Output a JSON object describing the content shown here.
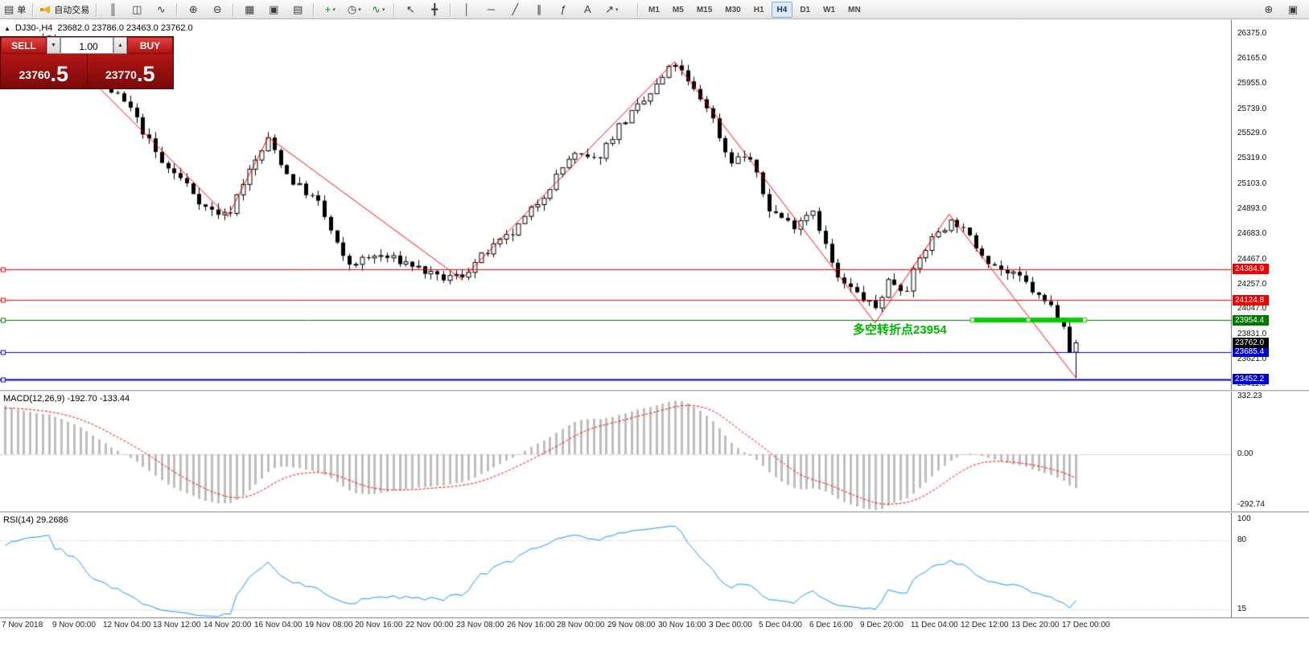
{
  "toolbar": {
    "caret_glyph": "▾",
    "groups": [
      {
        "items": [
          {
            "name": "new-order-button",
            "glyph": "▤",
            "label": "单"
          }
        ]
      },
      {
        "items": [
          {
            "name": "autotrade-button",
            "glyph": "horn",
            "label": "自动交易"
          }
        ]
      },
      {
        "items": [
          {
            "name": "bar-chart-button",
            "glyph": "║"
          },
          {
            "name": "candlestick-chart-button",
            "glyph": "◫"
          },
          {
            "name": "line-chart-button",
            "glyph": "∿"
          }
        ]
      },
      {
        "items": [
          {
            "name": "zoom-in-button",
            "glyph": "⊕"
          },
          {
            "name": "zoom-out-button",
            "glyph": "⊖"
          }
        ]
      },
      {
        "items": [
          {
            "name": "tile-windows-button",
            "glyph": "▦"
          },
          {
            "name": "cascade-windows-button",
            "glyph": "▣"
          },
          {
            "name": "arrange-windows-button",
            "glyph": "▤"
          }
        ]
      },
      {
        "items": [
          {
            "name": "new-chart-button",
            "glyph": "+",
            "caret": true,
            "accent": "#1a7f1a"
          },
          {
            "name": "profiles-button",
            "glyph": "◷",
            "caret": true
          },
          {
            "name": "indicators-button",
            "glyph": "∿",
            "caret": true,
            "accent": "#1a7f1a"
          }
        ]
      },
      {
        "items": [
          {
            "name": "cursor-button",
            "glyph": "↖"
          },
          {
            "name": "crosshair-button",
            "glyph": "╋"
          }
        ]
      },
      {
        "items": [
          {
            "name": "vertical-line-button",
            "glyph": "│"
          },
          {
            "name": "horizontal-line-button",
            "glyph": "─"
          },
          {
            "name": "trendline-button",
            "glyph": "╱"
          },
          {
            "name": "channel-button",
            "glyph": "∥"
          },
          {
            "name": "fibonacci-button",
            "glyph": "ƒ"
          },
          {
            "name": "text-button",
            "glyph": "A"
          },
          {
            "name": "arrow-tools-button",
            "glyph": "↗",
            "caret": true
          }
        ]
      }
    ],
    "timeframes": [
      "M1",
      "M5",
      "M15",
      "M30",
      "H1",
      "H4",
      "D1",
      "W1",
      "MN"
    ],
    "active_timeframe": "H4",
    "right_icons": [
      {
        "name": "zoom-window-button",
        "glyph": "⊕"
      },
      {
        "name": "document-button",
        "glyph": "▣"
      }
    ]
  },
  "chart_header": {
    "toggle_glyph": "▲",
    "symbol": "DJ30-,H4",
    "ohlc": "23682.0 23786.0 23463.0 23762.0"
  },
  "trade_panel": {
    "sell_label": "SELL",
    "buy_label": "BUY",
    "volume": "1.00",
    "volume_down_glyph": "▼",
    "volume_up_glyph": "▲",
    "sell_price": "23760.5",
    "buy_price": "23770.5"
  },
  "price_scale": {
    "labels": [
      "26375.0",
      "26165.0",
      "25955.0",
      "25739.0",
      "25529.0",
      "25319.0",
      "25103.0",
      "24893.0",
      "24683.0",
      "24467.0",
      "24257.0",
      "24047.0",
      "23831.0",
      "23621.0",
      "23411.0"
    ]
  },
  "time_scale": {
    "labels": [
      "7 Nov 2018",
      "9 Nov 00:00",
      "12 Nov 04:00",
      "13 Nov 12:00",
      "14 Nov 20:00",
      "16 Nov 04:00",
      "19 Nov 08:00",
      "20 Nov 16:00",
      "22 Nov 00:00",
      "23 Nov 08:00",
      "26 Nov 16:00",
      "28 Nov 00:00",
      "29 Nov 08:00",
      "30 Nov 16:00",
      "3 Dec 00:00",
      "5 Dec 04:00",
      "6 Dec 16:00",
      "9 Dec 20:00",
      "11 Dec 04:00",
      "12 Dec 12:00",
      "13 Dec 20:00",
      "17 Dec 00:00"
    ]
  },
  "chart_data": {
    "type": "candlestick",
    "symbol": "DJ30-",
    "timeframe": "H4",
    "last_bar": {
      "open": 23682.0,
      "high": 23786.0,
      "low": 23463.0,
      "close": 23762.0
    },
    "price_axis": {
      "top": 26375.0,
      "bottom": 23411.0
    },
    "bars_approx": 172,
    "gen": {
      "seed": 7,
      "noise": 38,
      "wick": 55
    },
    "price_path": [
      [
        0.004,
        26120
      ],
      [
        0.036,
        26350
      ],
      [
        0.065,
        26150
      ],
      [
        0.084,
        25950
      ],
      [
        0.105,
        25750
      ],
      [
        0.131,
        25280
      ],
      [
        0.15,
        25120
      ],
      [
        0.167,
        24900
      ],
      [
        0.185,
        24830
      ],
      [
        0.196,
        25100
      ],
      [
        0.218,
        25480
      ],
      [
        0.235,
        25150
      ],
      [
        0.258,
        24950
      ],
      [
        0.281,
        24420
      ],
      [
        0.307,
        24500
      ],
      [
        0.333,
        24430
      ],
      [
        0.356,
        24300
      ],
      [
        0.375,
        24330
      ],
      [
        0.392,
        24500
      ],
      [
        0.418,
        24700
      ],
      [
        0.444,
        25050
      ],
      [
        0.464,
        25350
      ],
      [
        0.484,
        25300
      ],
      [
        0.503,
        25600
      ],
      [
        0.523,
        25800
      ],
      [
        0.548,
        26130
      ],
      [
        0.559,
        25950
      ],
      [
        0.575,
        25750
      ],
      [
        0.592,
        25300
      ],
      [
        0.608,
        25350
      ],
      [
        0.624,
        24900
      ],
      [
        0.644,
        24750
      ],
      [
        0.66,
        24900
      ],
      [
        0.68,
        24300
      ],
      [
        0.693,
        24200
      ],
      [
        0.711,
        24050
      ],
      [
        0.722,
        24300
      ],
      [
        0.735,
        24200
      ],
      [
        0.748,
        24500
      ],
      [
        0.761,
        24700
      ],
      [
        0.775,
        24800
      ],
      [
        0.791,
        24600
      ],
      [
        0.804,
        24450
      ],
      [
        0.817,
        24350
      ],
      [
        0.83,
        24300
      ],
      [
        0.843,
        24150
      ],
      [
        0.856,
        24050
      ],
      [
        0.866,
        23900
      ],
      [
        0.874,
        23700
      ]
    ],
    "zigzag": {
      "color": "#ff0000",
      "points": [
        [
          0.039,
          26350
        ],
        [
          0.185,
          24830
        ],
        [
          0.218,
          25500
        ],
        [
          0.375,
          24300
        ],
        [
          0.548,
          26140
        ],
        [
          0.711,
          23930
        ],
        [
          0.771,
          24850
        ],
        [
          0.874,
          23466
        ]
      ]
    },
    "hlines": [
      {
        "price": 24384.9,
        "color": "#ee0000",
        "width": 1,
        "badge": "24384.9"
      },
      {
        "price": 24124.8,
        "color": "#ee0000",
        "width": 1,
        "badge": "24124.8"
      },
      {
        "price": 23954.4,
        "color": "#007800",
        "width": 1,
        "badge": "23954.4"
      },
      {
        "price": 23685.4,
        "color": "#0000cc",
        "width": 1,
        "badge": "23685.4"
      },
      {
        "price": 23452.2,
        "color": "#0000cc",
        "width": 2,
        "badge": "23452.2"
      }
    ],
    "current_price": {
      "value": "23762.0",
      "badge_color": "#000000"
    },
    "trend_segment": {
      "price": 23954.0,
      "x_start_frac": 0.79,
      "x_end_frac": 0.881,
      "color": "#00cc00",
      "width": 6
    },
    "annotation": {
      "text": "多空转折点23954",
      "color": "#00b400"
    },
    "indicators": [
      {
        "name": "MACD",
        "params": "12,26,9",
        "header": "MACD(12,26,9) -192.70 -133.44",
        "main_value": -192.7,
        "signal_value": -133.44,
        "scale_labels": [
          {
            "text": "332.23",
            "value": 332.23
          },
          {
            "text": "0.00",
            "value": 0.0
          },
          {
            "text": "-292.74",
            "value": -292.74
          }
        ],
        "histogram_color": "#bdbdbd",
        "signal_color": "#ff0000"
      },
      {
        "name": "RSI",
        "params": "14",
        "header": "RSI(14) 29.2686",
        "value": 29.2686,
        "scale_labels": [
          {
            "text": "100",
            "value": 100
          },
          {
            "text": "80",
            "value": 80
          },
          {
            "text": "15",
            "value": 15
          }
        ],
        "levels": [
          80,
          15
        ],
        "line_color": "#1E90FF"
      }
    ]
  }
}
